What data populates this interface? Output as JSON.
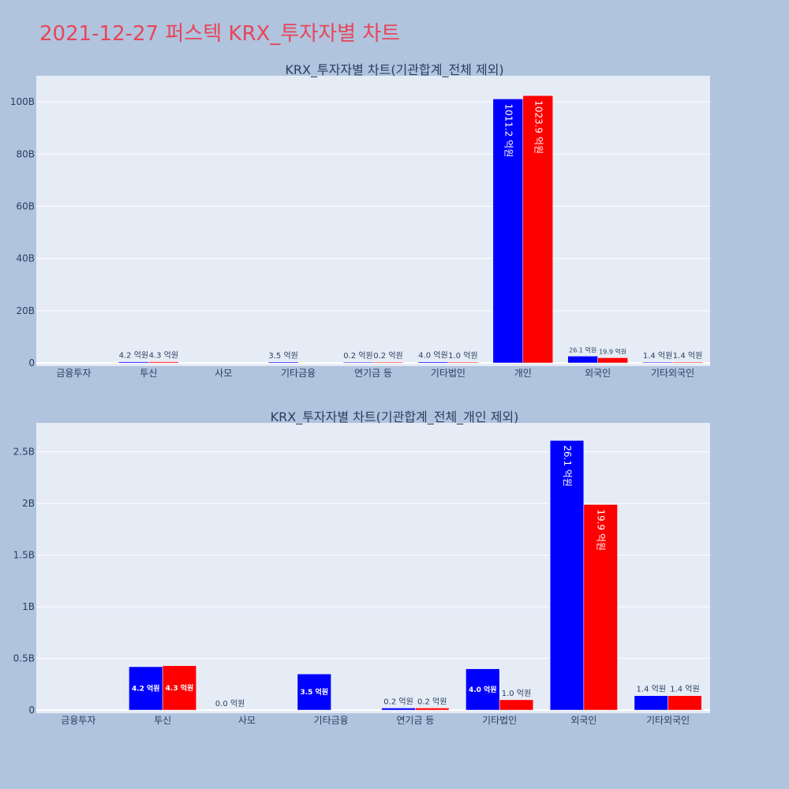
{
  "page": {
    "title": "2021-12-27 퍼스텍 KRX_투자자별 차트",
    "title_color": "#e8455a",
    "background": "#b0c4de",
    "plot_background": "#e5ecf6"
  },
  "chart_data": [
    {
      "type": "bar",
      "title": "KRX_투자자별 차트(기관합계_전체 제외)",
      "categories": [
        "금융투자",
        "투신",
        "사모",
        "기타금융",
        "연기금 등",
        "기타법인",
        "개인",
        "외국인",
        "기타외국인"
      ],
      "series": [
        {
          "color": "#0000ff",
          "values": [
            0,
            420000000,
            0,
            350000000,
            20000000,
            400000000,
            101120000000,
            2610000000,
            140000000
          ],
          "labels": [
            "",
            "4.2 억원",
            "",
            "3.5 억원",
            "0.2 억원",
            "4.0 억원",
            "1011.2 억원",
            "26.1 억원",
            "1.4 억원"
          ]
        },
        {
          "color": "#ff0000",
          "values": [
            0,
            430000000,
            0,
            0,
            20000000,
            100000000,
            102390000000,
            1990000000,
            140000000
          ],
          "labels": [
            "",
            "4.3 억원",
            "",
            "",
            "0.2 억원",
            "1.0 억원",
            "1023.9 억원",
            "19.9 억원",
            "1.4 억원"
          ]
        }
      ],
      "ylim": [
        0,
        110000000000
      ],
      "yticks": [
        0,
        20000000000,
        40000000000,
        60000000000,
        80000000000,
        100000000000
      ],
      "ytick_labels": [
        "0",
        "20B",
        "40B",
        "60B",
        "80B",
        "100B"
      ],
      "grid": true
    },
    {
      "type": "bar",
      "title": "KRX_투자자별 차트(기관합계_전체_개인 제외)",
      "categories": [
        "금융투자",
        "투신",
        "사모",
        "기타금융",
        "연기금 등",
        "기타법인",
        "외국인",
        "기타외국인"
      ],
      "series": [
        {
          "color": "#0000ff",
          "values": [
            0,
            420000000,
            0,
            350000000,
            20000000,
            400000000,
            2610000000,
            140000000
          ],
          "labels": [
            "",
            "4.2 억원",
            "0.0 억원",
            "3.5 억원",
            "0.2 억원",
            "4.0 억원",
            "26.1 억원",
            "1.4 억원"
          ]
        },
        {
          "color": "#ff0000",
          "values": [
            0,
            430000000,
            0,
            0,
            20000000,
            100000000,
            1990000000,
            140000000
          ],
          "labels": [
            "",
            "4.3 억원",
            "",
            "",
            "0.2 억원",
            "1.0 억원",
            "19.9 억원",
            "1.4 억원"
          ]
        }
      ],
      "ylim": [
        0,
        2780000000
      ],
      "yticks": [
        0,
        500000000,
        1000000000,
        1500000000,
        2000000000,
        2500000000
      ],
      "ytick_labels": [
        "0",
        "0.5B",
        "1B",
        "1.5B",
        "2B",
        "2.5B"
      ],
      "grid": true
    }
  ]
}
